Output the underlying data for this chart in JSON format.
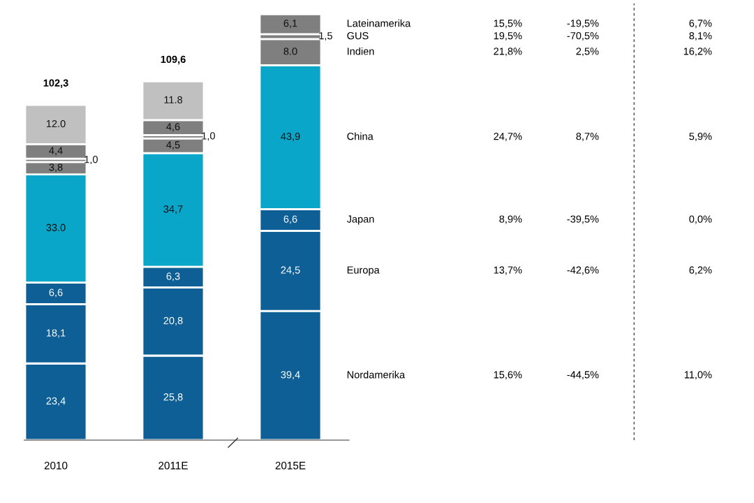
{
  "chart_data": {
    "type": "bar",
    "stacked": true,
    "categories": [
      "2010",
      "2011E",
      "2015E"
    ],
    "series": [
      {
        "name": "Nordamerika",
        "color": "#0e5f95",
        "values": [
          23.4,
          25.8,
          39.4
        ],
        "value_labels": [
          "23,4",
          "25,8",
          "39,4"
        ]
      },
      {
        "name": "Europa",
        "color": "#0e5f95",
        "values": [
          18.1,
          20.8,
          24.5
        ],
        "value_labels": [
          "18,1",
          "20,8",
          "24,5"
        ]
      },
      {
        "name": "Japan",
        "color": "#0e5f95",
        "values": [
          6.6,
          6.3,
          6.6
        ],
        "value_labels": [
          "6,6",
          "6,3",
          "6,6"
        ]
      },
      {
        "name": "China",
        "color": "#0aa6c9",
        "values": [
          33.0,
          34.7,
          43.9
        ],
        "value_labels": [
          "33.0",
          "34,7",
          "43,9"
        ]
      },
      {
        "name": "Indien",
        "color": "#7f7f7f",
        "values": [
          3.8,
          4.5,
          8.0
        ],
        "value_labels": [
          "3,8",
          "4,5",
          "8.0"
        ]
      },
      {
        "name": "GUS",
        "color": "#7f7f7f",
        "values": [
          1.0,
          1.0,
          1.5
        ],
        "value_labels": [
          "1,0",
          "1,0",
          "1,5"
        ]
      },
      {
        "name": "Lateinamerika",
        "color": "#7f7f7f",
        "values": [
          4.4,
          4.6,
          6.1
        ],
        "value_labels": [
          "4,4",
          "4,6",
          "6,1"
        ]
      },
      {
        "color": "#c0c0c0",
        "values": [
          12.0,
          11.8,
          null
        ],
        "value_labels": [
          "12.0",
          "11.8",
          null
        ]
      }
    ],
    "totals": [
      "102,3",
      "109,6",
      null
    ],
    "annotations": [
      "15,6%",
      "-44,5%",
      "11,0%",
      "13,7%",
      "-42,6%",
      "6,2%",
      "8,9%",
      "-39,5%",
      "0,0%",
      "24,7%",
      "8,7%",
      "5,9%",
      "21,8%",
      "2,5%",
      "16,2%",
      "19,5%",
      "-70,5%",
      "8,1%",
      "15,5%",
      "-19,5%",
      "6,7%"
    ]
  }
}
